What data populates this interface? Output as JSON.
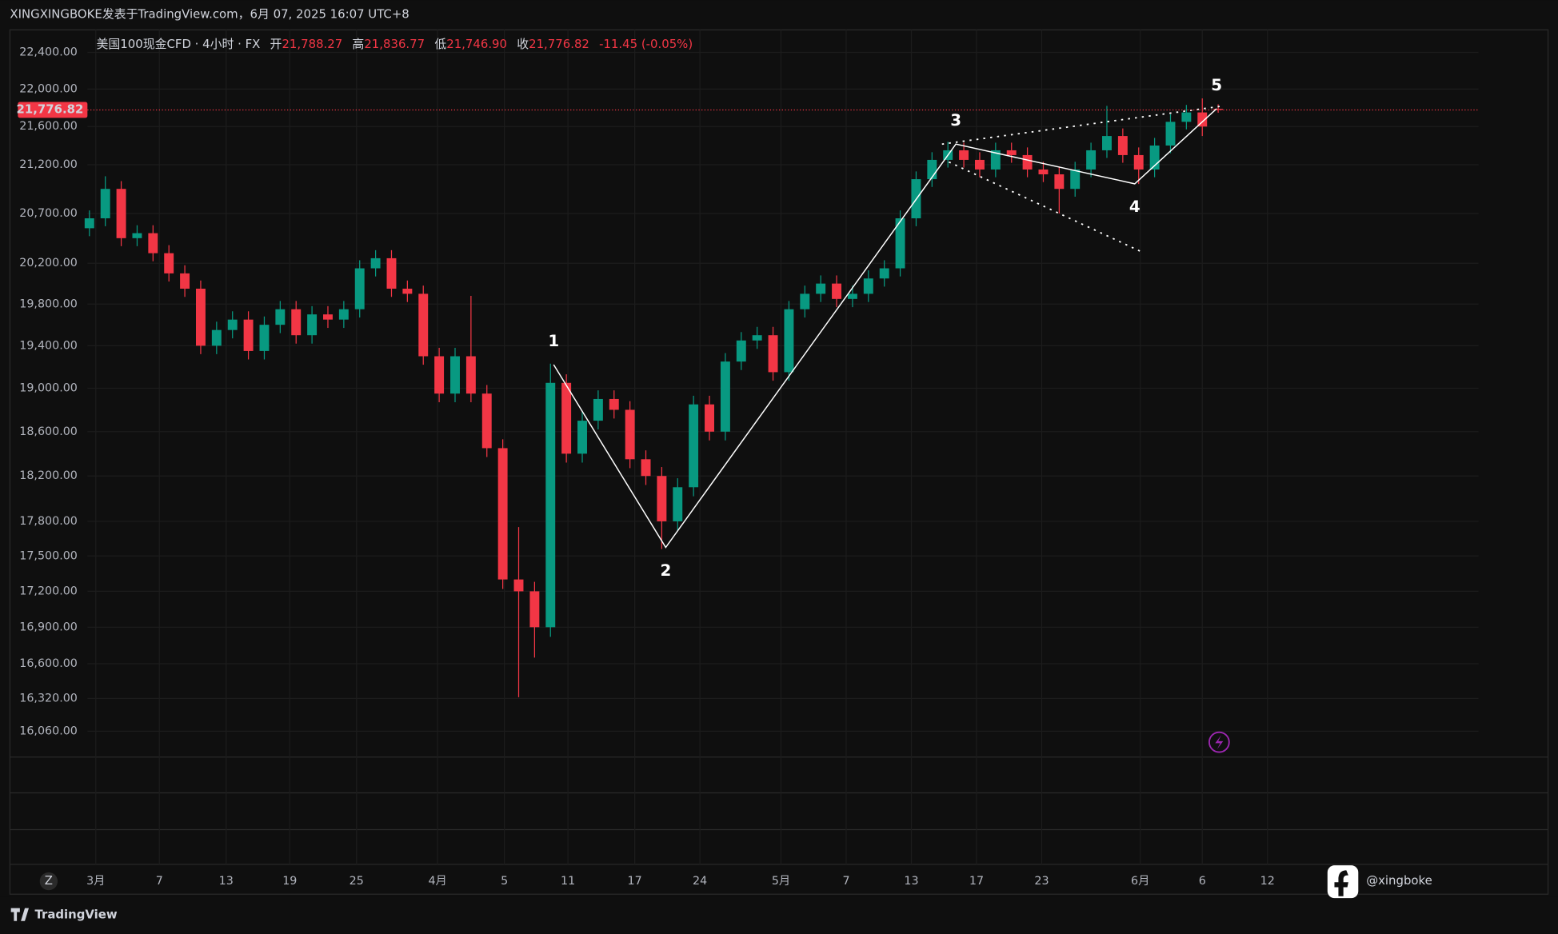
{
  "header": {
    "title": "XINGXINGBOKE发表于TradingView.com，6月 07, 2025 16:07 UTC+8"
  },
  "footer": {
    "brand": "TradingView",
    "watermark": "@xingboke",
    "axis_button": "Z"
  },
  "chart_data": {
    "type": "candlestick",
    "log_scale": true,
    "grid": true,
    "up_color": "#089981",
    "down_color": "#f23645",
    "legend": {
      "symbol": "美国100现金CFD · 4小时 · FX",
      "open_label": "开",
      "open": {
        "value": 21788.27,
        "label": "21,788.27"
      },
      "high_label": "高",
      "high": {
        "value": 21836.77,
        "label": "21,836.77"
      },
      "low_label": "低",
      "low": {
        "value": 21746.9,
        "label": "21,746.90"
      },
      "close_label": "收",
      "close": {
        "value": 21776.82,
        "label": "21,776.82"
      },
      "change": "-11.45 (-0.05%)"
    },
    "last_price": {
      "value": 21776.82,
      "label": "21,776.82"
    },
    "xlim": [
      -0.125,
      87.375
    ],
    "xticks": [
      {
        "value": 0.4,
        "label": "3月"
      },
      {
        "value": 4.4,
        "label": "7"
      },
      {
        "value": 8.6,
        "label": "13"
      },
      {
        "value": 12.6,
        "label": "19"
      },
      {
        "value": 16.8,
        "label": "25"
      },
      {
        "value": 21.9,
        "label": "4月"
      },
      {
        "value": 26.1,
        "label": "5"
      },
      {
        "value": 30.1,
        "label": "11"
      },
      {
        "value": 34.3,
        "label": "17"
      },
      {
        "value": 38.4,
        "label": "24"
      },
      {
        "value": 43.5,
        "label": "5月"
      },
      {
        "value": 47.6,
        "label": "7"
      },
      {
        "value": 51.7,
        "label": "13"
      },
      {
        "value": 55.8,
        "label": "17"
      },
      {
        "value": 59.9,
        "label": "23"
      },
      {
        "value": 66.1,
        "label": "6月"
      },
      {
        "value": 70,
        "label": "6"
      },
      {
        "value": 74.1,
        "label": "12"
      }
    ],
    "ylim": [
      15873,
      22648
    ],
    "yticks": [
      {
        "value": 22400,
        "label": "22,400.00"
      },
      {
        "value": 22000,
        "label": "22,000.00"
      },
      {
        "value": 21600,
        "label": "21,600.00"
      },
      {
        "value": 21200,
        "label": "21,200.00"
      },
      {
        "value": 20700,
        "label": "20,700.00"
      },
      {
        "value": 20200,
        "label": "20,200.00"
      },
      {
        "value": 19800,
        "label": "19,800.00"
      },
      {
        "value": 19400,
        "label": "19,400.00"
      },
      {
        "value": 19000,
        "label": "19,000.00"
      },
      {
        "value": 18600,
        "label": "18,600.00"
      },
      {
        "value": 18200,
        "label": "18,200.00"
      },
      {
        "value": 17800,
        "label": "17,800.00"
      },
      {
        "value": 17500,
        "label": "17,500.00"
      },
      {
        "value": 17200,
        "label": "17,200.00"
      },
      {
        "value": 16900,
        "label": "16,900.00"
      },
      {
        "value": 16600,
        "label": "16,600.00"
      },
      {
        "value": 16320,
        "label": "16,320.00"
      },
      {
        "value": 16060,
        "label": "16,060.00"
      }
    ],
    "open": [
      20550,
      20650,
      20950,
      20450,
      20500,
      20300,
      20100,
      19950,
      19400,
      19550,
      19650,
      19350,
      19600,
      19750,
      19500,
      19700,
      19650,
      19750,
      20150,
      20250,
      19950,
      19900,
      19300,
      18950,
      19300,
      18950,
      18450,
      17300,
      17200,
      16900,
      19050,
      18400,
      18700,
      18900,
      18800,
      18350,
      18200,
      17800,
      18100,
      18850,
      18600,
      19250,
      19450,
      19500,
      19150,
      19750,
      19900,
      20000,
      19850,
      19900,
      20050,
      20150,
      20650,
      21050,
      21250,
      21350,
      21250,
      21150,
      21350,
      21300,
      21150,
      21100,
      20950,
      21150,
      21350,
      21500,
      21300,
      21150,
      21400,
      21650,
      21750,
      21788.27
    ],
    "high": [
      20730,
      21080,
      21030,
      20580,
      20580,
      20380,
      20180,
      20030,
      19630,
      19730,
      19730,
      19680,
      19830,
      19830,
      19780,
      19780,
      19830,
      20230,
      20330,
      20330,
      20030,
      19980,
      19380,
      19380,
      19880,
      19030,
      18530,
      17750,
      17280,
      19230,
      19130,
      18780,
      18980,
      18980,
      18880,
      18430,
      18280,
      18180,
      18930,
      18930,
      19330,
      19530,
      19580,
      19580,
      19830,
      19980,
      20080,
      20080,
      19980,
      20130,
      20230,
      20730,
      21130,
      21330,
      21440,
      21430,
      21330,
      21430,
      21430,
      21380,
      21230,
      21180,
      21230,
      21430,
      21820,
      21580,
      21380,
      21480,
      21730,
      21830,
      21900,
      21836.77
    ],
    "low": [
      20470,
      20570,
      20370,
      20370,
      20220,
      20020,
      19870,
      19320,
      19320,
      19470,
      19270,
      19270,
      19520,
      19420,
      19420,
      19570,
      19570,
      19670,
      20070,
      19870,
      19820,
      19220,
      18870,
      18870,
      18870,
      18370,
      17220,
      16330,
      16650,
      16820,
      18320,
      18320,
      18620,
      18720,
      18270,
      18120,
      17560,
      17720,
      18020,
      18520,
      18520,
      19170,
      19370,
      19070,
      19070,
      19670,
      19820,
      19770,
      19770,
      19820,
      19970,
      20070,
      20570,
      20970,
      21170,
      21170,
      21070,
      21070,
      21220,
      21070,
      21020,
      20700,
      20870,
      21070,
      21270,
      21220,
      21000,
      21070,
      21320,
      21570,
      21500,
      21746.9
    ],
    "close": [
      20650,
      20950,
      20450,
      20500,
      20300,
      20100,
      19950,
      19400,
      19550,
      19650,
      19350,
      19600,
      19750,
      19500,
      19700,
      19650,
      19750,
      20150,
      20250,
      19950,
      19900,
      19300,
      18950,
      19300,
      18950,
      18450,
      17300,
      17200,
      16900,
      19050,
      18400,
      18700,
      18900,
      18800,
      18350,
      18200,
      17800,
      18100,
      18850,
      18600,
      19250,
      19450,
      19500,
      19150,
      19750,
      19900,
      20000,
      19850,
      19900,
      20050,
      20150,
      20650,
      21050,
      21250,
      21350,
      21250,
      21150,
      21350,
      21300,
      21150,
      21100,
      20950,
      21150,
      21350,
      21500,
      21300,
      21150,
      21400,
      21650,
      21750,
      21600,
      21776.82
    ],
    "waves": {
      "color": "#ffffff",
      "labels": [
        "1",
        "2",
        "3",
        "4",
        "5"
      ],
      "x": [
        29.2,
        36.25,
        54.5,
        65.75,
        70.9
      ],
      "values": [
        19221,
        17574,
        21415,
        21002,
        21790
      ]
    }
  }
}
